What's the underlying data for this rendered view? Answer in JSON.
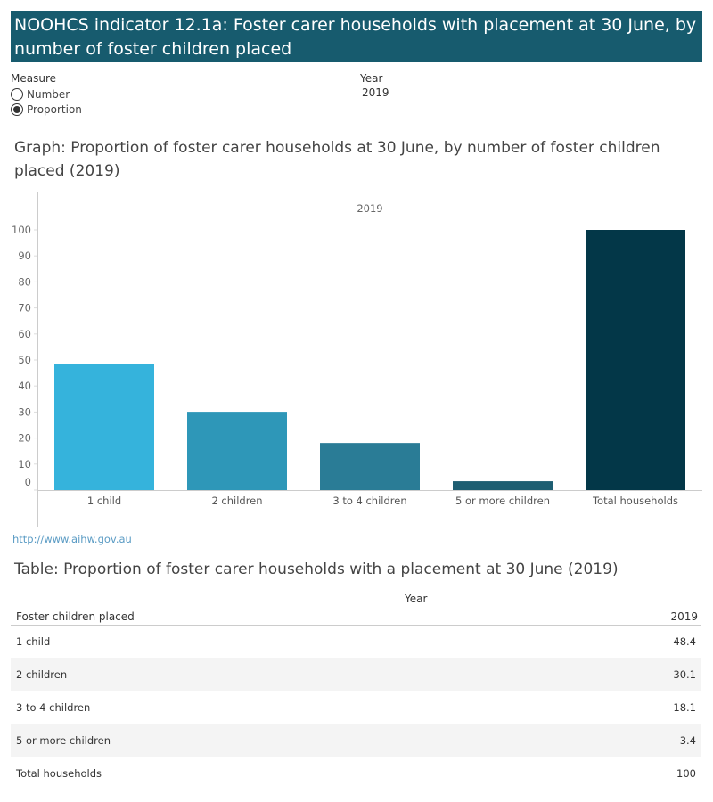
{
  "header": {
    "title": "NOOHCS indicator 12.1a: Foster carer households with placement at 30 June, by number of foster children placed"
  },
  "filters": {
    "measure_label": "Measure",
    "options": [
      {
        "label": "Number",
        "selected": false
      },
      {
        "label": "Proportion",
        "selected": true
      }
    ],
    "year_label": "Year",
    "year_value": "2019"
  },
  "graph_title": "Graph: Proportion of foster carer households at 30 June, by number of foster children placed (2019)",
  "chart_data": {
    "type": "bar",
    "header": "2019",
    "categories": [
      "1 child",
      "2 children",
      "3 to 4 children",
      "5 or more children",
      "Total households"
    ],
    "values": [
      48.4,
      30.1,
      18.1,
      3.4,
      100
    ],
    "colors": [
      "#35b3dc",
      "#2e97b8",
      "#2a7c96",
      "#1e5e72",
      "#033748"
    ],
    "ylim": [
      0,
      100
    ],
    "yticks": [
      "0",
      "10",
      "20",
      "30",
      "40",
      "50",
      "60",
      "70",
      "80",
      "90",
      "100"
    ],
    "grid": false
  },
  "source_link": "http://www.aihw.gov.au",
  "table": {
    "title": "Table: Proportion of foster carer households with a placement at 30 June (2019)",
    "column_group": "Year",
    "row_header": "Foster children placed",
    "column": "2019",
    "rows": [
      {
        "label": "1 child",
        "value": "48.4"
      },
      {
        "label": "2 children",
        "value": "30.1"
      },
      {
        "label": "3 to 4 children",
        "value": "18.1"
      },
      {
        "label": "5 or more children",
        "value": "3.4"
      },
      {
        "label": "Total households",
        "value": "100"
      }
    ]
  }
}
